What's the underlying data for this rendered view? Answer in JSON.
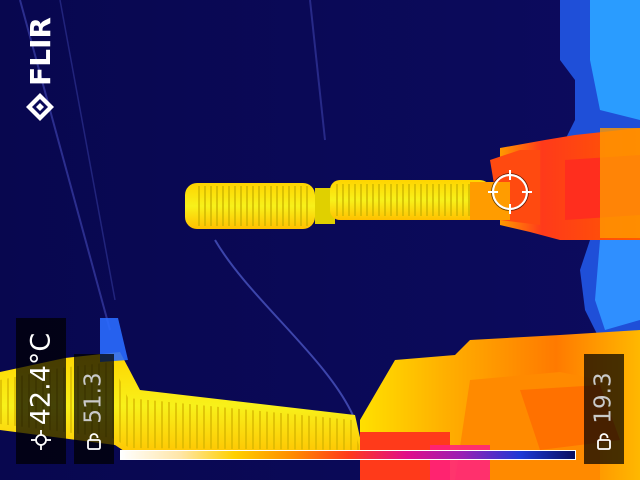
{
  "brand": {
    "name": "FLIR"
  },
  "spot_meter": {
    "value": "42.4°C",
    "icon": "crosshair-target-icon"
  },
  "scale": {
    "max_value": "51.3",
    "min_value": "19.3",
    "lock_icon": "lock-icon",
    "palette": [
      "#ffffff",
      "#ffe6a8",
      "#ffd000",
      "#ff8a00",
      "#ff3b1a",
      "#e00e8a",
      "#9a1fb4",
      "#1c39d6",
      "#0a0d60"
    ]
  },
  "colors": {
    "background": "#0b0a5a",
    "hot": "#ff2a2a",
    "warm": "#ff9c00",
    "mid": "#f7f00f",
    "cool": "#1a7bff"
  }
}
